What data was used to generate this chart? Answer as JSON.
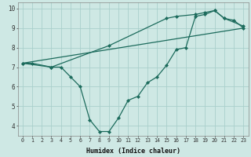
{
  "xlabel": "Humidex (Indice chaleur)",
  "xlim": [
    -0.5,
    23.5
  ],
  "ylim": [
    3.5,
    10.3
  ],
  "xticks": [
    0,
    1,
    2,
    3,
    4,
    5,
    6,
    7,
    8,
    9,
    10,
    11,
    12,
    13,
    14,
    15,
    16,
    17,
    18,
    19,
    20,
    21,
    22,
    23
  ],
  "yticks": [
    4,
    5,
    6,
    7,
    8,
    9,
    10
  ],
  "background_color": "#cee8e4",
  "grid_color": "#aacfcb",
  "line_color": "#1c6b5c",
  "line1_x": [
    0,
    1,
    3,
    4,
    5,
    6,
    7,
    8,
    9,
    10,
    11,
    12,
    13,
    14,
    15,
    16,
    17,
    18,
    19,
    20,
    21,
    22,
    23
  ],
  "line1_y": [
    7.2,
    7.2,
    7.0,
    7.0,
    6.5,
    6.0,
    4.3,
    3.7,
    3.7,
    4.4,
    5.3,
    5.5,
    6.2,
    6.5,
    7.1,
    7.9,
    8.0,
    9.6,
    9.7,
    9.9,
    9.5,
    9.4,
    9.0
  ],
  "line2_x": [
    0,
    3,
    9,
    15,
    16,
    18,
    19,
    20,
    21,
    23
  ],
  "line2_y": [
    7.2,
    7.0,
    8.1,
    9.5,
    9.6,
    9.7,
    9.8,
    9.9,
    9.5,
    9.1
  ],
  "line3_x": [
    0,
    23
  ],
  "line3_y": [
    7.2,
    9.0
  ]
}
